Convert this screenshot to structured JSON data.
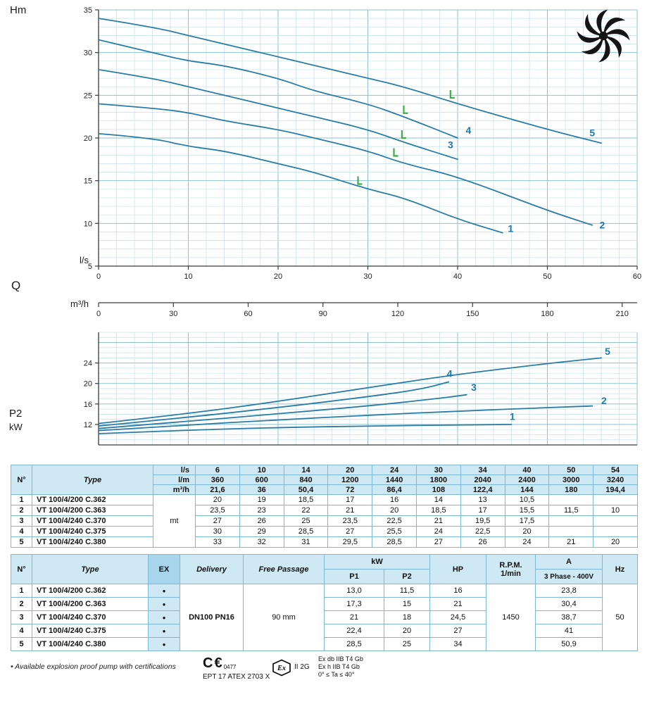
{
  "labels": {
    "hm": "Hm",
    "ls": "l/s",
    "q": "Q",
    "m3h": "m³/h",
    "p2": "P2",
    "kw": "kW"
  },
  "colors": {
    "curve": "#2a7ca6",
    "grid_minor": "#c2e1e7",
    "grid_major": "#8cc3cd",
    "axis": "#3a3a3a",
    "label_blue": "#1d7ab0",
    "marker_green": "#3fae49",
    "table_header_bg": "#cfe9f4",
    "table_border": "#7db9d6",
    "ex_header_bg": "#a7d6ec"
  },
  "chart_data": [
    {
      "id": "hq",
      "type": "line",
      "title": "Head vs flow performance curves",
      "ylabel": "Hm",
      "xlabel": "Q",
      "x_units": [
        "l/s",
        "m³/h"
      ],
      "xlim": [
        0,
        60
      ],
      "ylim": [
        5,
        35
      ],
      "x_ticks": [
        0,
        10,
        20,
        30,
        40,
        50,
        60
      ],
      "x2_ticks": [
        0,
        30,
        60,
        90,
        120,
        150,
        180,
        210
      ],
      "x2_scale": 3.6,
      "y_ticks": [
        5,
        10,
        15,
        20,
        25,
        30,
        35
      ],
      "grid": {
        "x_minor": 2,
        "x_major": 10,
        "y_minor": 1,
        "y_major": 5
      },
      "series": [
        {
          "name": "1",
          "points": [
            [
              0,
              20.5
            ],
            [
              6,
              20
            ],
            [
              10,
              19
            ],
            [
              14,
              18.5
            ],
            [
              20,
              17
            ],
            [
              24,
              16
            ],
            [
              30,
              14
            ],
            [
              34,
              13
            ],
            [
              40,
              10.5
            ],
            [
              45,
              8.9
            ]
          ],
          "label_at": [
            45.6,
            9.0
          ]
        },
        {
          "name": "2",
          "points": [
            [
              0,
              24
            ],
            [
              6,
              23.5
            ],
            [
              10,
              23
            ],
            [
              14,
              22
            ],
            [
              20,
              21
            ],
            [
              24,
              20
            ],
            [
              30,
              18.5
            ],
            [
              34,
              17
            ],
            [
              40,
              15.5
            ],
            [
              50,
              11.5
            ],
            [
              55,
              9.8
            ]
          ],
          "label_at": [
            55.8,
            9.4
          ]
        },
        {
          "name": "3",
          "points": [
            [
              0,
              28
            ],
            [
              6,
              27
            ],
            [
              10,
              26
            ],
            [
              14,
              25
            ],
            [
              20,
              23.5
            ],
            [
              24,
              22.5
            ],
            [
              30,
              21
            ],
            [
              34,
              19.5
            ],
            [
              40,
              17.5
            ]
          ],
          "label_at": [
            38.9,
            18.8
          ]
        },
        {
          "name": "4",
          "points": [
            [
              0,
              31.5
            ],
            [
              6,
              30
            ],
            [
              10,
              29
            ],
            [
              14,
              28.5
            ],
            [
              20,
              27
            ],
            [
              24,
              25.5
            ],
            [
              30,
              24
            ],
            [
              34,
              22.5
            ],
            [
              40,
              20
            ]
          ],
          "label_at": [
            40.9,
            20.5
          ]
        },
        {
          "name": "5",
          "points": [
            [
              0,
              34
            ],
            [
              6,
              33
            ],
            [
              10,
              32
            ],
            [
              14,
              31
            ],
            [
              20,
              29.5
            ],
            [
              24,
              28.5
            ],
            [
              30,
              27
            ],
            [
              34,
              26
            ],
            [
              40,
              24
            ],
            [
              50,
              21
            ],
            [
              56,
              19.4
            ]
          ],
          "label_at": [
            54.7,
            20.2
          ]
        }
      ],
      "duty_markers": [
        [
          28.9,
          14.6
        ],
        [
          32.9,
          17.9
        ],
        [
          33.8,
          20.0
        ],
        [
          34.0,
          22.9
        ],
        [
          39.2,
          24.7
        ]
      ]
    },
    {
      "id": "p2",
      "type": "line",
      "title": "Shaft power vs flow curves",
      "ylabel": "P2 kW",
      "xlim": [
        0,
        60
      ],
      "ylim": [
        8,
        30
      ],
      "y_ticks": [
        12,
        16,
        20,
        24
      ],
      "grid": {
        "x_minor": 2,
        "x_major": 10,
        "y_minor": 1,
        "y_major": 4
      },
      "series": [
        {
          "name": "1",
          "points": [
            [
              0,
              10.2
            ],
            [
              10,
              10.9
            ],
            [
              20,
              11.4
            ],
            [
              30,
              11.7
            ],
            [
              40,
              11.9
            ],
            [
              46,
              12.0
            ]
          ],
          "label_at": [
            45.8,
            12.9
          ]
        },
        {
          "name": "2",
          "points": [
            [
              0,
              10.8
            ],
            [
              10,
              11.9
            ],
            [
              20,
              12.9
            ],
            [
              30,
              13.8
            ],
            [
              40,
              14.6
            ],
            [
              50,
              15.3
            ],
            [
              55,
              15.6
            ]
          ],
          "label_at": [
            56.0,
            16.0
          ]
        },
        {
          "name": "3",
          "points": [
            [
              0,
              11.2
            ],
            [
              10,
              12.6
            ],
            [
              20,
              14.1
            ],
            [
              30,
              15.6
            ],
            [
              38,
              17.1
            ],
            [
              41,
              17.8
            ]
          ],
          "label_at": [
            41.5,
            18.6
          ]
        },
        {
          "name": "4",
          "points": [
            [
              0,
              11.7
            ],
            [
              10,
              13.4
            ],
            [
              20,
              15.3
            ],
            [
              30,
              17.4
            ],
            [
              36,
              18.9
            ],
            [
              39,
              20.3
            ]
          ],
          "label_at": [
            38.8,
            21.3
          ]
        },
        {
          "name": "5",
          "points": [
            [
              0,
              12.2
            ],
            [
              10,
              14.1
            ],
            [
              20,
              16.5
            ],
            [
              30,
              19.2
            ],
            [
              40,
              21.8
            ],
            [
              50,
              23.9
            ],
            [
              56,
              25.0
            ]
          ],
          "label_at": [
            56.4,
            25.6
          ]
        }
      ],
      "duty_markers": []
    }
  ],
  "table1": {
    "col_no": "N°",
    "col_type": "Type",
    "unit_rows": [
      "l/s",
      "l/m",
      "m³/h"
    ],
    "unit_label": "mt",
    "flow_ls": [
      "6",
      "10",
      "14",
      "20",
      "24",
      "30",
      "34",
      "40",
      "50",
      "54"
    ],
    "flow_lm": [
      "360",
      "600",
      "840",
      "1200",
      "1440",
      "1800",
      "2040",
      "2400",
      "3000",
      "3240"
    ],
    "flow_m3h": [
      "21,6",
      "36",
      "50,4",
      "72",
      "86,4",
      "108",
      "122,4",
      "144",
      "180",
      "194,4"
    ],
    "rows": [
      {
        "no": "1",
        "type": "VT 100/4/200 C.362",
        "values": [
          "20",
          "19",
          "18,5",
          "17",
          "16",
          "14",
          "13",
          "10,5",
          "",
          ""
        ]
      },
      {
        "no": "2",
        "type": "VT 100/4/200 C.363",
        "values": [
          "23,5",
          "23",
          "22",
          "21",
          "20",
          "18,5",
          "17",
          "15,5",
          "11,5",
          "10"
        ]
      },
      {
        "no": "3",
        "type": "VT 100/4/240 C.370",
        "values": [
          "27",
          "26",
          "25",
          "23,5",
          "22,5",
          "21",
          "19,5",
          "17,5",
          "",
          ""
        ]
      },
      {
        "no": "4",
        "type": "VT 100/4/240 C.375",
        "values": [
          "30",
          "29",
          "28,5",
          "27",
          "25,5",
          "24",
          "22,5",
          "20",
          "",
          ""
        ]
      },
      {
        "no": "5",
        "type": "VT 100/4/240 C.380",
        "values": [
          "33",
          "32",
          "31",
          "29,5",
          "28,5",
          "27",
          "26",
          "24",
          "21",
          "20"
        ]
      }
    ]
  },
  "table2": {
    "headers": {
      "no": "N°",
      "type": "Type",
      "ex": "EX",
      "delivery": "Delivery",
      "free_passage": "Free Passage",
      "kw": "kW",
      "p1": "P1",
      "p2": "P2",
      "hp": "HP",
      "rpm": "R.P.M.",
      "rpm2": "1/min",
      "a": "A",
      "a_sub": "3 Phase - 400V",
      "hz": "Hz"
    },
    "shared": {
      "delivery": "DN100 PN16",
      "free_passage": "90 mm",
      "rpm": "1450",
      "hz": "50"
    },
    "rows": [
      {
        "no": "1",
        "type": "VT 100/4/200 C.362",
        "ex": "•",
        "p1": "13,0",
        "p2": "11,5",
        "hp": "16",
        "a": "23,8"
      },
      {
        "no": "2",
        "type": "VT 100/4/200 C.363",
        "ex": "•",
        "p1": "17,3",
        "p2": "15",
        "hp": "21",
        "a": "30,4"
      },
      {
        "no": "3",
        "type": "VT 100/4/240 C.370",
        "ex": "•",
        "p1": "21",
        "p2": "18",
        "hp": "24,5",
        "a": "38,7"
      },
      {
        "no": "4",
        "type": "VT 100/4/240 C.375",
        "ex": "•",
        "p1": "22,4",
        "p2": "20",
        "hp": "27",
        "a": "41"
      },
      {
        "no": "5",
        "type": "VT 100/4/240 C.380",
        "ex": "•",
        "p1": "28,5",
        "p2": "25",
        "hp": "34",
        "a": "50,9"
      }
    ]
  },
  "footer": {
    "note": "• Available explosion proof pump with certifications",
    "ce_mark": "C€",
    "ce_number": "0477",
    "atex": "EPT 17 ATEX 2703 X",
    "ex_symbol": "Ex",
    "ex_group": "II 2G",
    "ex_line1": "Ex db IIB T4 Gb",
    "ex_line2": "Ex h IIB T4 Gb",
    "ex_line3": "0° ≤ Ta ≤ 40°"
  }
}
